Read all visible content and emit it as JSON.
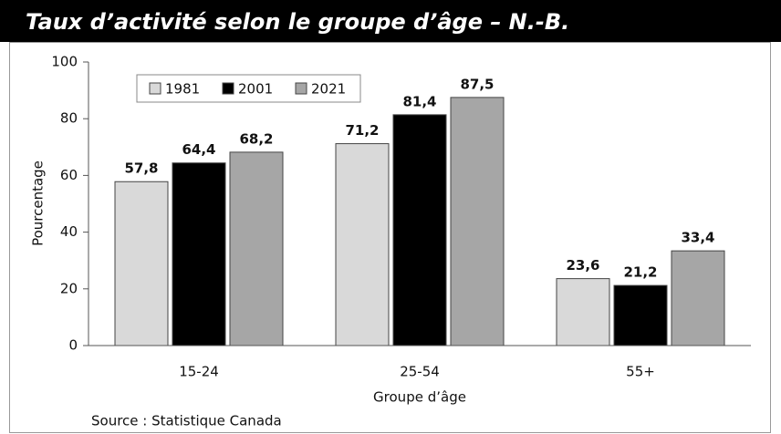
{
  "chart_data": {
    "type": "bar",
    "title": "Taux d’activité selon le groupe d’âge – N.-B.",
    "xlabel": "Groupe d’âge",
    "ylabel": "Pourcentage",
    "source": "Source : Statistique Canada",
    "categories": [
      "15-24",
      "25-54",
      "55+"
    ],
    "series": [
      {
        "name": "1981",
        "color": "#d9d9d9",
        "values": [
          57.8,
          71.2,
          23.6
        ],
        "value_labels": [
          "57,8",
          "71,2",
          "23,6"
        ]
      },
      {
        "name": "2001",
        "color": "#000000",
        "values": [
          64.4,
          81.4,
          21.2
        ],
        "value_labels": [
          "64,4",
          "81,4",
          "21,2"
        ]
      },
      {
        "name": "2021",
        "color": "#a6a6a6",
        "values": [
          68.2,
          87.5,
          33.4
        ],
        "value_labels": [
          "68,2",
          "87,5",
          "33,4"
        ]
      }
    ],
    "ylim": [
      0,
      100
    ],
    "yticks": [
      0,
      20,
      40,
      60,
      80,
      100
    ],
    "grid": false,
    "legend": "upper left"
  }
}
